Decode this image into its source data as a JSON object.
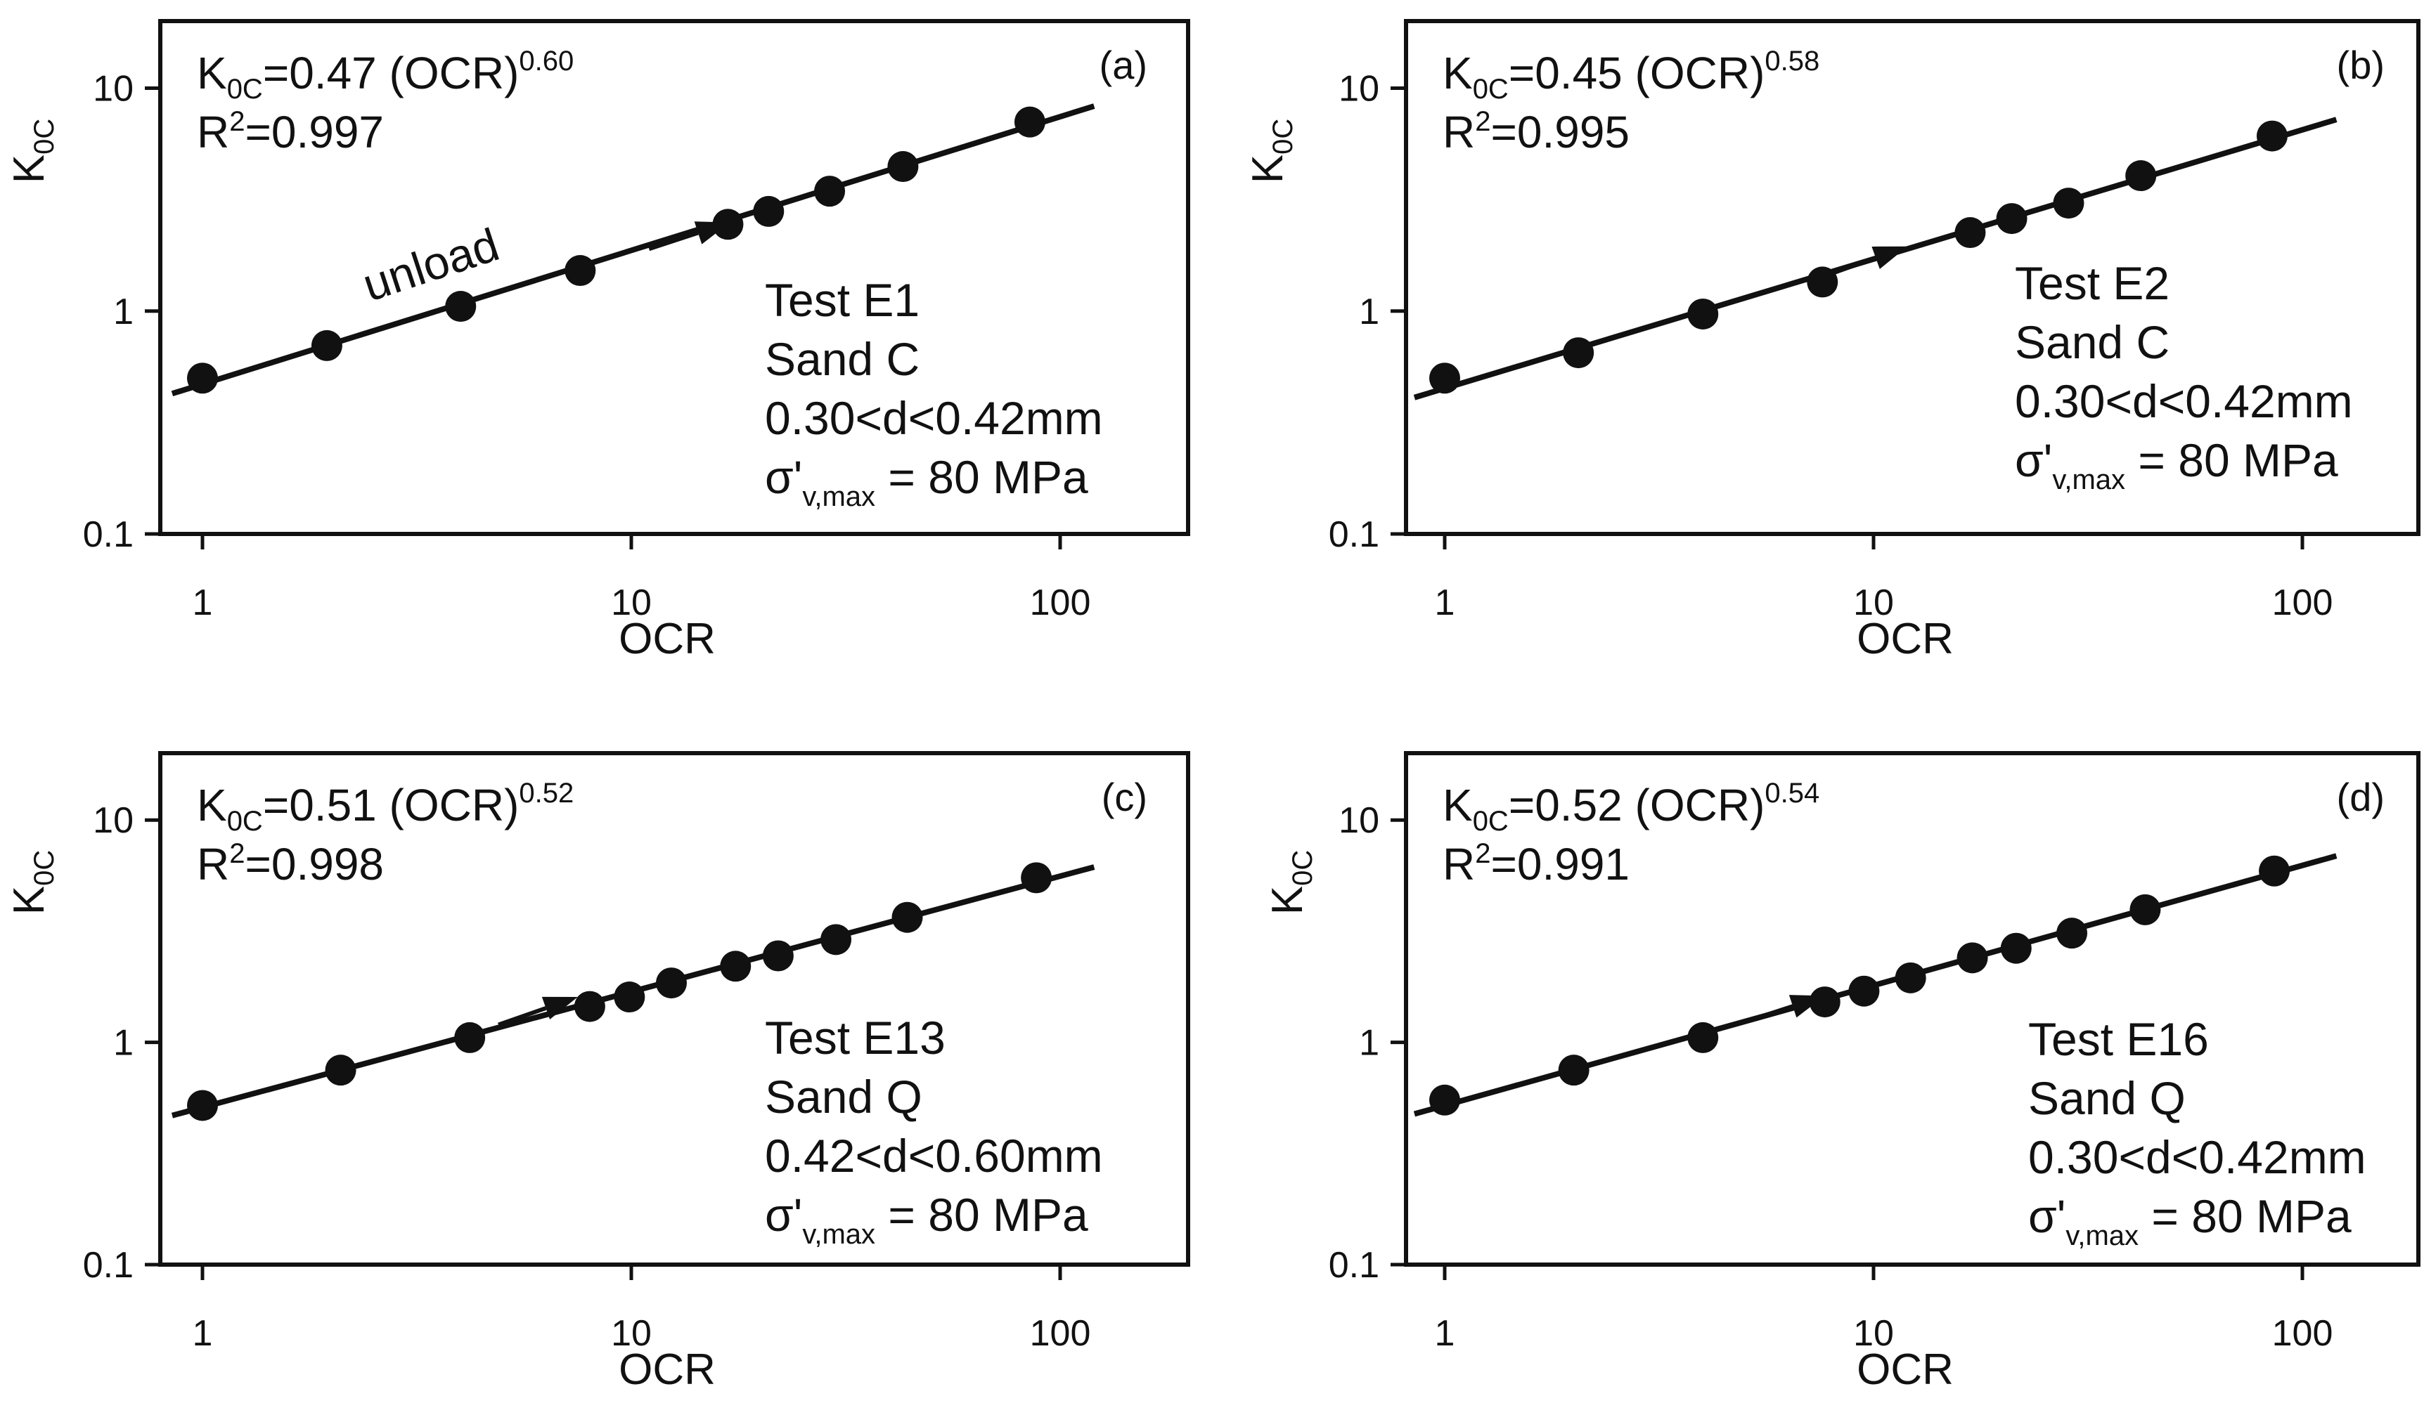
{
  "colors": {
    "ink": "#111111",
    "background": "#ffffff"
  },
  "chart_data": [
    {
      "type": "scatter",
      "panel": "(a)",
      "xscale": "log",
      "yscale": "log",
      "xlim": [
        0.8,
        200
      ],
      "ylim": [
        0.1,
        20
      ],
      "xticks": [
        "1",
        "10",
        "100"
      ],
      "yticks": [
        "0.1",
        "1",
        "10"
      ],
      "xlabel": "OCR",
      "ylabel": {
        "main": "K",
        "sub": "0C"
      },
      "equation": {
        "lhs_main": "K",
        "lhs_sub": "0C",
        "rhs": "=0.47 (OCR)",
        "exponent": "0.60"
      },
      "r2": {
        "main": "R",
        "sup": "2",
        "value": "=0.997"
      },
      "fit": {
        "coefficient": 0.47,
        "exponent": 0.6,
        "x_range": [
          0.85,
          120
        ]
      },
      "points": [
        [
          1.0,
          0.5
        ],
        [
          1.95,
          0.7
        ],
        [
          4.0,
          1.05
        ],
        [
          7.6,
          1.52
        ],
        [
          16.8,
          2.45
        ],
        [
          20.9,
          2.8
        ],
        [
          29.0,
          3.45
        ],
        [
          43.0,
          4.45
        ],
        [
          85.0,
          7.05
        ]
      ],
      "arrow": {
        "label": "unload",
        "from": [
          11.0,
          1.9
        ],
        "to": [
          17.0,
          2.5
        ]
      },
      "info": {
        "test": "Test E1",
        "sand": "Sand C",
        "size": "0.30<d<0.42mm",
        "stress": {
          "symbol": "σ'",
          "sub": "v,max",
          "value": " = 80 MPa"
        }
      }
    },
    {
      "type": "scatter",
      "panel": "(b)",
      "xscale": "log",
      "yscale": "log",
      "xlim": [
        0.8,
        200
      ],
      "ylim": [
        0.1,
        20
      ],
      "xticks": [
        "1",
        "10",
        "100"
      ],
      "yticks": [
        "0.1",
        "1",
        "10"
      ],
      "xlabel": "OCR",
      "ylabel": {
        "main": "K",
        "sub": "0C"
      },
      "equation": {
        "lhs_main": "K",
        "lhs_sub": "0C",
        "rhs": "=0.45 (OCR)",
        "exponent": "0.58"
      },
      "r2": {
        "main": "R",
        "sup": "2",
        "value": "=0.995"
      },
      "fit": {
        "coefficient": 0.45,
        "exponent": 0.58,
        "x_range": [
          0.85,
          120
        ]
      },
      "points": [
        [
          1.0,
          0.5
        ],
        [
          2.05,
          0.65
        ],
        [
          4.0,
          0.97
        ],
        [
          7.6,
          1.35
        ],
        [
          16.8,
          2.25
        ],
        [
          21.0,
          2.6
        ],
        [
          28.5,
          3.05
        ],
        [
          42.0,
          4.05
        ],
        [
          85.0,
          6.1
        ]
      ],
      "arrow": {
        "label": "",
        "from": [
          7.8,
          1.45
        ],
        "to": [
          12.0,
          1.95
        ]
      },
      "info": {
        "test": "Test E2",
        "sand": "Sand C",
        "size": "0.30<d<0.42mm",
        "stress": {
          "symbol": "σ'",
          "sub": "v,max",
          "value": " = 80 MPa"
        }
      }
    },
    {
      "type": "scatter",
      "panel": "(c)",
      "xscale": "log",
      "yscale": "log",
      "xlim": [
        0.8,
        200
      ],
      "ylim": [
        0.1,
        20
      ],
      "xticks": [
        "1",
        "10",
        "100"
      ],
      "yticks": [
        "0.1",
        "1",
        "10"
      ],
      "xlabel": "OCR",
      "ylabel": {
        "main": "K",
        "sub": "0C"
      },
      "equation": {
        "lhs_main": "K",
        "lhs_sub": "0C",
        "rhs": "=0.51 (OCR)",
        "exponent": "0.52"
      },
      "r2": {
        "main": "R",
        "sup": "2",
        "value": "=0.998"
      },
      "fit": {
        "coefficient": 0.51,
        "exponent": 0.52,
        "x_range": [
          0.85,
          120
        ]
      },
      "points": [
        [
          1.0,
          0.52
        ],
        [
          2.1,
          0.75
        ],
        [
          4.2,
          1.05
        ],
        [
          8.0,
          1.45
        ],
        [
          9.9,
          1.6
        ],
        [
          12.4,
          1.85
        ],
        [
          17.5,
          2.2
        ],
        [
          22.0,
          2.45
        ],
        [
          30.0,
          2.9
        ],
        [
          44.0,
          3.65
        ],
        [
          88.0,
          5.5
        ]
      ],
      "arrow": {
        "label": "",
        "from": [
          4.9,
          1.2
        ],
        "to": [
          7.5,
          1.6
        ]
      },
      "info": {
        "test": "Test E13",
        "sand": "Sand Q",
        "size": "0.42<d<0.60mm",
        "stress": {
          "symbol": "σ'",
          "sub": "v,max",
          "value": " = 80 MPa"
        }
      }
    },
    {
      "type": "scatter",
      "panel": "(d)",
      "xscale": "log",
      "yscale": "log",
      "xlim": [
        0.8,
        200
      ],
      "ylim": [
        0.1,
        20
      ],
      "xticks": [
        "1",
        "10",
        "100"
      ],
      "yticks": [
        "0.1",
        "1",
        "10"
      ],
      "xlabel": "OCR",
      "ylabel": {
        "main": "K",
        "sub": "0C"
      },
      "equation": {
        "lhs_main": "K",
        "lhs_sub": "0C",
        "rhs": "=0.52 (OCR)",
        "exponent": "0.54"
      },
      "r2": {
        "main": "R",
        "sup": "2",
        "value": "=0.991"
      },
      "fit": {
        "coefficient": 0.52,
        "exponent": 0.54,
        "x_range": [
          0.85,
          120
        ]
      },
      "points": [
        [
          1.0,
          0.55
        ],
        [
          2.0,
          0.75
        ],
        [
          4.0,
          1.05
        ],
        [
          7.7,
          1.52
        ],
        [
          9.5,
          1.7
        ],
        [
          12.2,
          1.95
        ],
        [
          17.0,
          2.4
        ],
        [
          21.5,
          2.65
        ],
        [
          29.0,
          3.1
        ],
        [
          43.0,
          3.95
        ],
        [
          86.0,
          5.9
        ]
      ],
      "arrow": {
        "label": "",
        "from": [
          5.1,
          1.25
        ],
        "to": [
          7.7,
          1.62
        ]
      },
      "info": {
        "test": "Test E16",
        "sand": "Sand Q",
        "size": "0.30<d<0.42mm",
        "stress": {
          "symbol": "σ'",
          "sub": "v,max",
          "value": " = 80 MPa"
        }
      }
    }
  ]
}
